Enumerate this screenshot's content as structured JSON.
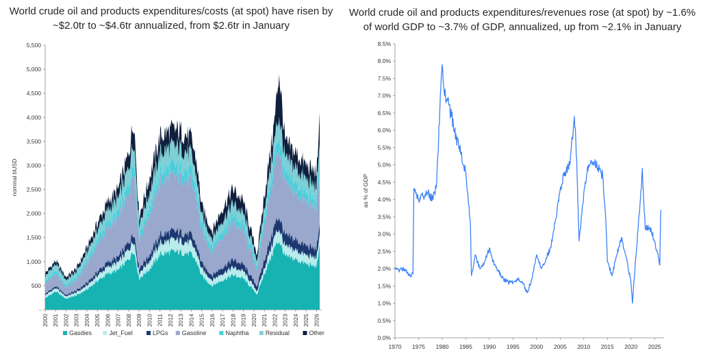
{
  "chart_data": [
    {
      "type": "area",
      "stacked": true,
      "title": "World crude oil and products expenditures/costs (at spot) have risen by ~$2.0tr to ~$4.6tr annualized, from $2.6tr in January",
      "xlabel": "",
      "ylabel": "nominal bUSD",
      "ylim": [
        0,
        5500
      ],
      "y_ticks": [
        "-",
        "500",
        "1,000",
        "1,500",
        "2,000",
        "2,500",
        "3,000",
        "3,500",
        "4,000",
        "4,500",
        "5,000",
        "5,500"
      ],
      "x_ticks": [
        "2000",
        "2001",
        "2002",
        "2003",
        "2004",
        "2005",
        "2006",
        "2007",
        "2008",
        "2009",
        "2010",
        "2011",
        "2012",
        "2013",
        "2014",
        "2015",
        "2016",
        "2017",
        "2018",
        "2019",
        "2020",
        "2021",
        "2022",
        "2023",
        "2024",
        "2025",
        "2026"
      ],
      "legend_position": "bottom",
      "x": [
        2000,
        2001,
        2002,
        2003,
        2004,
        2005,
        2006,
        2007,
        2008,
        2008.5,
        2009,
        2010,
        2011,
        2012,
        2013,
        2014,
        2014.5,
        2015,
        2016,
        2017,
        2018,
        2019,
        2020.3,
        2021,
        2022,
        2022.4,
        2023,
        2024,
        2025,
        2025.9,
        2026.15,
        2026.3
      ],
      "series": [
        {
          "name": "Gasdies",
          "color": "#17b3b3",
          "values": [
            240,
            380,
            230,
            300,
            420,
            600,
            750,
            820,
            1050,
            1250,
            650,
            850,
            1150,
            1200,
            1200,
            1150,
            1000,
            700,
            500,
            620,
            720,
            650,
            320,
            750,
            1300,
            1450,
            1100,
            1050,
            950,
            900,
            1000,
            1450
          ]
        },
        {
          "name": "Jet_Fuel",
          "color": "#b9ecec",
          "values": [
            60,
            70,
            50,
            60,
            80,
            110,
            140,
            160,
            200,
            220,
            120,
            170,
            230,
            240,
            240,
            230,
            200,
            140,
            120,
            140,
            160,
            150,
            70,
            120,
            230,
            250,
            200,
            190,
            180,
            180,
            190,
            230
          ]
        },
        {
          "name": "LPGs",
          "color": "#1c3870",
          "values": [
            30,
            40,
            30,
            40,
            60,
            80,
            100,
            110,
            150,
            160,
            100,
            130,
            170,
            180,
            180,
            170,
            150,
            120,
            100,
            130,
            160,
            140,
            100,
            170,
            230,
            260,
            230,
            220,
            200,
            190,
            200,
            230
          ]
        },
        {
          "name": "Gasoline",
          "color": "#9aa8cd",
          "values": [
            200,
            260,
            160,
            220,
            400,
            560,
            700,
            800,
            1000,
            1350,
            580,
            850,
            1100,
            1150,
            1150,
            1100,
            950,
            650,
            500,
            650,
            780,
            700,
            350,
            750,
            1200,
            1450,
            1050,
            1000,
            900,
            850,
            900,
            1050
          ]
        },
        {
          "name": "Naphtha",
          "color": "#49cfdc",
          "values": [
            50,
            70,
            50,
            60,
            80,
            110,
            140,
            150,
            200,
            230,
            120,
            160,
            220,
            220,
            220,
            210,
            180,
            130,
            110,
            130,
            150,
            140,
            80,
            140,
            250,
            260,
            210,
            200,
            190,
            180,
            200,
            400
          ]
        },
        {
          "name": "Residual",
          "color": "#7ecfd6",
          "values": [
            120,
            130,
            100,
            110,
            150,
            200,
            240,
            260,
            350,
            380,
            220,
            290,
            380,
            390,
            380,
            360,
            300,
            200,
            160,
            200,
            240,
            210,
            110,
            200,
            350,
            400,
            320,
            300,
            280,
            260,
            280,
            320
          ]
        },
        {
          "name": "Other",
          "color": "#0f1f3d",
          "values": [
            60,
            70,
            60,
            70,
            100,
            140,
            170,
            200,
            300,
            400,
            150,
            300,
            350,
            350,
            350,
            330,
            300,
            200,
            150,
            250,
            300,
            250,
            120,
            250,
            400,
            900,
            350,
            300,
            300,
            300,
            280,
            690
          ]
        }
      ]
    },
    {
      "type": "line",
      "title": "World crude oil and products expenditures/revenues rose (at spot) by ~1.6% of world GDP to ~3.7% of GDP, annualized, up from ~2.1% in January",
      "xlabel": "",
      "ylabel": "as % of GDP",
      "ylim": [
        0,
        8.5
      ],
      "y_ticks": [
        "0.0%",
        "0.5%",
        "1.0%",
        "1.5%",
        "2.0%",
        "2.5%",
        "3.0%",
        "3.5%",
        "4.0%",
        "4.5%",
        "5.0%",
        "5.5%",
        "6.0%",
        "6.5%",
        "7.0%",
        "7.5%",
        "8.0%",
        "8.5%"
      ],
      "xlim": [
        1970,
        2027
      ],
      "x_ticks": [
        "1970",
        "1975",
        "1980",
        "1985",
        "1990",
        "1995",
        "2000",
        "2005",
        "2010",
        "2015",
        "2020",
        "2025"
      ],
      "series": [
        {
          "name": "",
          "color": "#3b82f6",
          "x": [
            1970,
            1971,
            1972,
            1973,
            1973.8,
            1974,
            1975,
            1976,
            1977,
            1978,
            1978.8,
            1979.5,
            1980,
            1980.5,
            1981,
            1982,
            1983,
            1984,
            1985,
            1986,
            1986.2,
            1987,
            1988,
            1989,
            1990,
            1991,
            1992,
            1993,
            1994,
            1995,
            1996,
            1997,
            1998,
            1999,
            2000,
            2001,
            2002,
            2003,
            2004,
            2005,
            2006,
            2007,
            2008,
            2008.5,
            2009,
            2010,
            2011,
            2012,
            2013,
            2014,
            2014.7,
            2015,
            2016,
            2017,
            2018,
            2019,
            2020,
            2020.3,
            2021,
            2022,
            2022.4,
            2023,
            2024,
            2025,
            2025.9,
            2026.1,
            2026.3
          ],
          "y": [
            2.0,
            1.95,
            2.0,
            1.8,
            1.85,
            4.3,
            4.0,
            4.1,
            4.2,
            4.0,
            4.4,
            6.6,
            7.9,
            7.0,
            6.9,
            6.4,
            5.8,
            5.3,
            4.8,
            3.2,
            1.8,
            2.4,
            2.0,
            2.2,
            2.6,
            2.1,
            1.9,
            1.7,
            1.6,
            1.6,
            1.7,
            1.6,
            1.3,
            1.7,
            2.4,
            2.0,
            2.3,
            2.6,
            3.4,
            4.3,
            4.8,
            5.0,
            6.4,
            5.2,
            2.8,
            4.2,
            5.0,
            5.1,
            4.9,
            4.7,
            3.3,
            2.2,
            1.8,
            2.4,
            2.9,
            2.3,
            1.6,
            1.0,
            2.3,
            4.0,
            4.9,
            3.2,
            3.2,
            2.8,
            2.3,
            2.1,
            3.7
          ]
        }
      ]
    }
  ]
}
